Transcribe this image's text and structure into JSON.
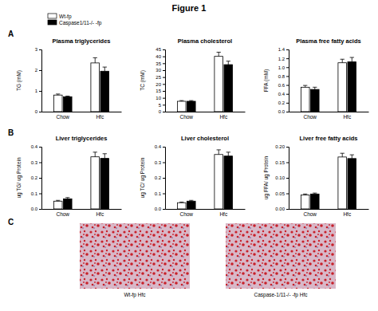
{
  "title": "Figure 1",
  "panel_labels": [
    "A",
    "B",
    "C"
  ],
  "legend_entries": [
    {
      "name": "Wt-fp",
      "color": "#ffffff"
    },
    {
      "name": "Caspase1/11-/- -fp",
      "color": "#000000"
    }
  ],
  "chart_data": [
    {
      "type": "bar",
      "title": "Plasma triglycerides",
      "y_label": "TG (mM)",
      "categories": [
        "Chow",
        "Hfc"
      ],
      "ylim": [
        0,
        3
      ],
      "yticks": [
        0,
        1,
        2,
        3
      ],
      "series": [
        {
          "color": "#ffffff",
          "values": [
            0.8,
            2.35
          ],
          "errors": [
            0.05,
            0.25
          ]
        },
        {
          "color": "#000000",
          "values": [
            0.72,
            1.95
          ],
          "errors": [
            0.03,
            0.2
          ]
        }
      ]
    },
    {
      "type": "bar",
      "title": "Plasma cholesterol",
      "y_label": "TC (mM)",
      "categories": [
        "Chow",
        "Hfc"
      ],
      "ylim": [
        0,
        45
      ],
      "yticks": [
        0,
        5,
        10,
        15,
        20,
        25,
        30,
        35,
        40,
        45
      ],
      "series": [
        {
          "color": "#ffffff",
          "values": [
            7.5,
            40
          ],
          "errors": [
            0.5,
            3
          ]
        },
        {
          "color": "#000000",
          "values": [
            7.5,
            34
          ],
          "errors": [
            0.5,
            2.5
          ]
        }
      ]
    },
    {
      "type": "bar",
      "title": "Plasma free fatty acids",
      "y_label": "FFA (mM)",
      "categories": [
        "Chow",
        "Hfc"
      ],
      "ylim": [
        0,
        1.4
      ],
      "yticks": [
        {
          "value": 0,
          "label": "0.0"
        },
        0.2,
        0.4,
        0.6,
        0.8,
        {
          "value": 1,
          "label": "1.0"
        },
        1.2,
        1.4
      ],
      "series": [
        {
          "color": "#ffffff",
          "values": [
            0.55,
            1.1
          ],
          "errors": [
            0.04,
            0.08
          ]
        },
        {
          "color": "#000000",
          "values": [
            0.5,
            1.12
          ],
          "errors": [
            0.05,
            0.1
          ]
        }
      ]
    },
    {
      "type": "bar",
      "title": "Liver triglycerides",
      "y_label": "ug TG/ ug Protein",
      "categories": [
        "Chow",
        "Hfc"
      ],
      "ylim": [
        0,
        0.4
      ],
      "yticks": [
        {
          "value": 0,
          "label": "0.0"
        },
        0.1,
        0.2,
        0.3,
        0.4
      ],
      "series": [
        {
          "color": "#ffffff",
          "values": [
            0.05,
            0.335
          ],
          "errors": [
            0.005,
            0.03
          ]
        },
        {
          "color": "#000000",
          "values": [
            0.065,
            0.325
          ],
          "errors": [
            0.008,
            0.03
          ]
        }
      ]
    },
    {
      "type": "bar",
      "title": "Liver cholesterol",
      "y_label": "ug TC/ ug Protein",
      "categories": [
        "Chow",
        "Hfc"
      ],
      "ylim": [
        0,
        0.4
      ],
      "yticks": [
        {
          "value": 0,
          "label": "0.0"
        },
        0.1,
        0.2,
        0.3,
        0.4
      ],
      "series": [
        {
          "color": "#ffffff",
          "values": [
            0.04,
            0.35
          ],
          "errors": [
            0.004,
            0.03
          ]
        },
        {
          "color": "#000000",
          "values": [
            0.05,
            0.34
          ],
          "errors": [
            0.005,
            0.025
          ]
        }
      ]
    },
    {
      "type": "bar",
      "title": "Liver free fatty acids",
      "y_label": "ug FFA/ ug Protein",
      "categories": [
        "Chow",
        "Hfc"
      ],
      "ylim": [
        0,
        0.2
      ],
      "yticks": [
        {
          "value": 0,
          "label": "0.00"
        },
        0.05,
        {
          "value": 0.1,
          "label": "0.10"
        },
        0.15,
        {
          "value": 0.2,
          "label": "0.20"
        }
      ],
      "series": [
        {
          "color": "#ffffff",
          "values": [
            0.045,
            0.167
          ],
          "errors": [
            0.003,
            0.012
          ]
        },
        {
          "color": "#000000",
          "values": [
            0.048,
            0.162
          ],
          "errors": [
            0.003,
            0.012
          ]
        }
      ]
    }
  ],
  "images": [
    {
      "caption": "Wt-fp Hfc"
    },
    {
      "caption": "Caspase-1/11-/- -fp Hfc"
    }
  ]
}
